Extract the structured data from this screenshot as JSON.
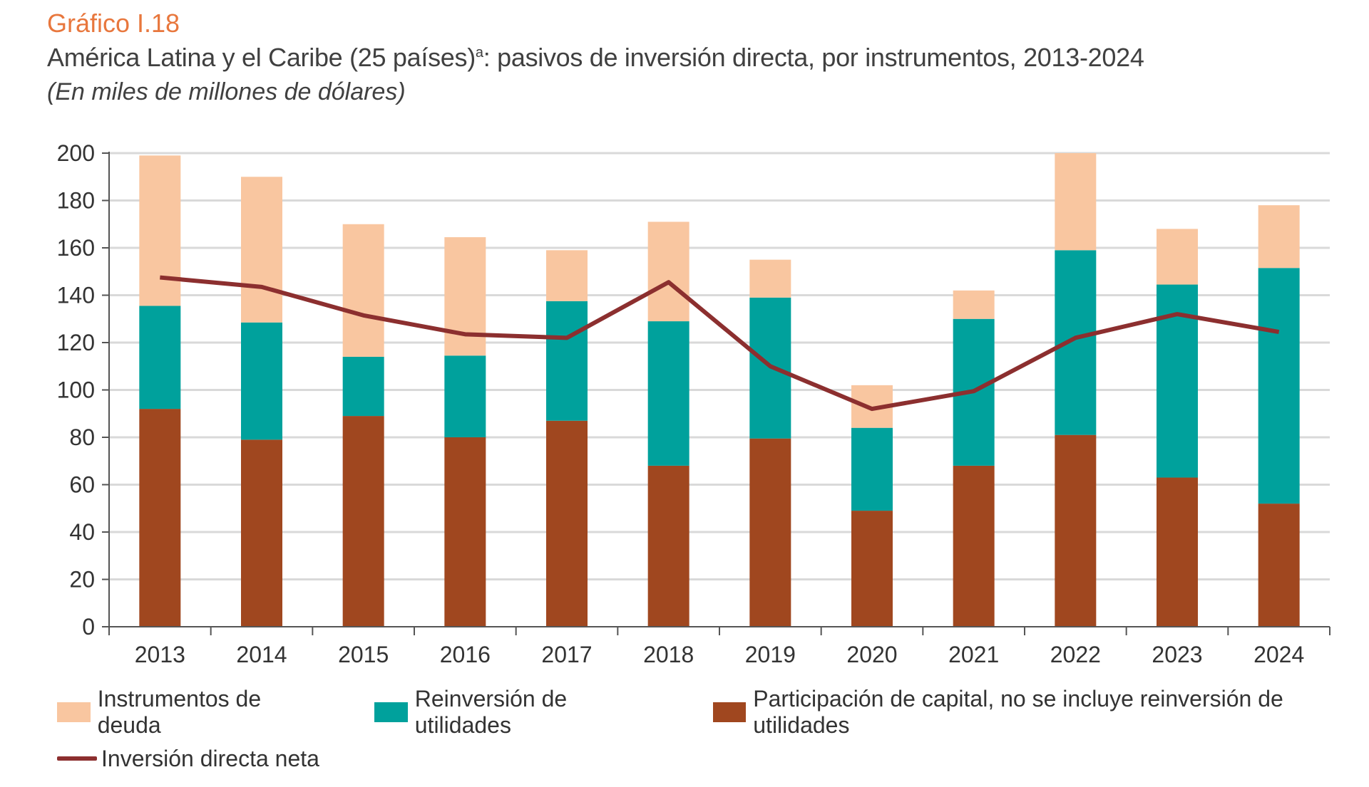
{
  "header": {
    "kicker": "Gráfico I.18",
    "title_main": "América Latina y el Caribe (25 países)",
    "title_sup": "a",
    "title_rest": ": pasivos de inversión directa, por instrumentos, 2013-2024",
    "unit": "(En miles de millones de dólares)"
  },
  "colors": {
    "deuda": "#f9c6a0",
    "reinversion": "#00a19c",
    "capital": "#a0471f",
    "neta": "#8c2f2f",
    "grid": "#d9d9d9",
    "axis": "#555555"
  },
  "chart_data": {
    "type": "bar",
    "stacked": true,
    "title": "América Latina y el Caribe (25 países): pasivos de inversión directa, por instrumentos, 2013-2024",
    "subtitle": "(En miles de millones de dólares)",
    "xlabel": "",
    "ylabel": "",
    "ylim": [
      0,
      200
    ],
    "yticks": [
      0,
      20,
      40,
      60,
      80,
      100,
      120,
      140,
      160,
      180,
      200
    ],
    "grid": true,
    "legend_position": "bottom",
    "categories": [
      "2013",
      "2014",
      "2015",
      "2016",
      "2017",
      "2018",
      "2019",
      "2020",
      "2021",
      "2022",
      "2023",
      "2024"
    ],
    "series": [
      {
        "name": "Participación de capital, no se incluye reinversión de utilidades",
        "key": "capital",
        "type": "bar",
        "values": [
          92,
          79,
          89,
          80,
          87,
          68,
          79.5,
          49,
          68,
          81,
          63,
          52
        ]
      },
      {
        "name": "Reinversión de utilidades",
        "key": "reinversion",
        "type": "bar",
        "values": [
          43.5,
          49.5,
          25,
          34.5,
          50.5,
          61,
          59.5,
          35,
          62,
          78,
          81.5,
          99.5
        ]
      },
      {
        "name": "Instrumentos de deuda",
        "key": "deuda",
        "type": "bar",
        "values": [
          63.5,
          61.5,
          56,
          50,
          21.5,
          42,
          16,
          18,
          12,
          41,
          23.5,
          26.5
        ]
      },
      {
        "name": "Inversión directa neta",
        "key": "neta",
        "type": "line",
        "values": [
          147.5,
          143.5,
          131.5,
          123.5,
          122,
          145.5,
          110,
          92,
          99.5,
          122,
          132,
          124.5
        ]
      }
    ]
  },
  "legend": {
    "items": [
      {
        "label": "Instrumentos de deuda",
        "key": "deuda"
      },
      {
        "label": "Reinversión de utilidades",
        "key": "reinversion"
      },
      {
        "label": "Participación de capital, no se incluye reinversión de utilidades",
        "key": "capital"
      },
      {
        "label": "Inversión directa neta",
        "key": "neta"
      }
    ]
  }
}
